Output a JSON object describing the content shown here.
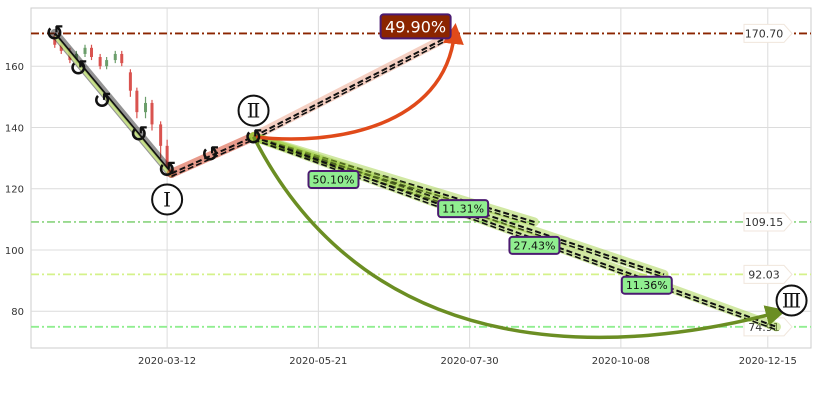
{
  "chart_data": {
    "type": "line",
    "x_axis": {
      "type": "date",
      "range": [
        "2020-01-09",
        "2021-01-04"
      ],
      "tick_labels": [
        "2020-03-12",
        "2020-05-21",
        "2020-07-30",
        "2020-10-08",
        "2020-12-15"
      ],
      "tick_dates": [
        "2020-03-12",
        "2020-05-21",
        "2020-07-30",
        "2020-10-08",
        "2020-12-15"
      ]
    },
    "y_axis": {
      "range": [
        68,
        179
      ],
      "tick_labels": [
        "80",
        "100",
        "120",
        "140",
        "160"
      ],
      "tick_values": [
        80,
        100,
        120,
        140,
        160
      ]
    },
    "grid": true,
    "price_bars": [
      {
        "x": "2020-01-20",
        "open": 170,
        "close": 167,
        "high": 171,
        "low": 166
      },
      {
        "x": "2020-01-23",
        "open": 167,
        "close": 165,
        "high": 168,
        "low": 164
      },
      {
        "x": "2020-01-27",
        "open": 165,
        "close": 162,
        "high": 166,
        "low": 161
      },
      {
        "x": "2020-01-30",
        "open": 162,
        "close": 164,
        "high": 165,
        "low": 161
      },
      {
        "x": "2020-02-03",
        "open": 164,
        "close": 166,
        "high": 167,
        "low": 163
      },
      {
        "x": "2020-02-06",
        "open": 166,
        "close": 163,
        "high": 167,
        "low": 162
      },
      {
        "x": "2020-02-10",
        "open": 163,
        "close": 160,
        "high": 164,
        "low": 159
      },
      {
        "x": "2020-02-13",
        "open": 160,
        "close": 162,
        "high": 163,
        "low": 159
      },
      {
        "x": "2020-02-17",
        "open": 162,
        "close": 164,
        "high": 165,
        "low": 161
      },
      {
        "x": "2020-02-20",
        "open": 164,
        "close": 161,
        "high": 165,
        "low": 160
      },
      {
        "x": "2020-02-24",
        "open": 158,
        "close": 152,
        "high": 159,
        "low": 150
      },
      {
        "x": "2020-02-27",
        "open": 152,
        "close": 145,
        "high": 153,
        "low": 143
      },
      {
        "x": "2020-03-02",
        "open": 145,
        "close": 148,
        "high": 150,
        "low": 143
      },
      {
        "x": "2020-03-05",
        "open": 148,
        "close": 141,
        "high": 149,
        "low": 139
      },
      {
        "x": "2020-03-09",
        "open": 141,
        "close": 134,
        "high": 142,
        "low": 130
      },
      {
        "x": "2020-03-12",
        "open": 134,
        "close": 127,
        "high": 136,
        "low": 124
      }
    ],
    "trend_segments": [
      {
        "name": "down",
        "from": {
          "x": "2020-01-20",
          "y": 170.7
        },
        "to": {
          "x": "2020-03-14",
          "y": 125
        },
        "color": "#111111"
      },
      {
        "name": "up-1",
        "from": {
          "x": "2020-03-14",
          "y": 125
        },
        "to": {
          "x": "2020-04-21",
          "y": 137
        },
        "color": "#cc2200"
      },
      {
        "name": "up-2",
        "from": {
          "x": "2020-04-21",
          "y": 137
        },
        "to": {
          "x": "2020-07-23",
          "y": 170.7
        },
        "color": "#e9967a"
      },
      {
        "name": "down-1",
        "from": {
          "x": "2020-04-21",
          "y": 137
        },
        "to": {
          "x": "2020-08-29",
          "y": 109.15
        },
        "color": "#9acd32"
      },
      {
        "name": "down-2",
        "from": {
          "x": "2020-04-21",
          "y": 137
        },
        "to": {
          "x": "2020-10-28",
          "y": 92.03
        },
        "color": "#9acd32"
      },
      {
        "name": "down-3",
        "from": {
          "x": "2020-04-21",
          "y": 137
        },
        "to": {
          "x": "2020-12-19",
          "y": 74.91
        },
        "color": "#9acd32"
      }
    ],
    "horizontal_levels": [
      {
        "value": 170.7,
        "label": "170.70",
        "color": "#8b2500"
      },
      {
        "value": 109.15,
        "label": "109.15",
        "color": "#98d98e"
      },
      {
        "value": 92.03,
        "label": "92.03",
        "color": "#d4f28a"
      },
      {
        "value": 74.91,
        "label": "74.91",
        "color": "#90ee90"
      }
    ],
    "percent_labels": [
      {
        "text": "49.90%",
        "x": "2020-07-05",
        "y": 173,
        "bg": "#8b2500",
        "fg": "#ffffff",
        "size": "big"
      },
      {
        "text": "50.10%",
        "x": "2020-05-28",
        "y": 123,
        "bg": "#90ee90",
        "fg": "#111111",
        "size": "small"
      },
      {
        "text": "11.31%",
        "x": "2020-07-27",
        "y": 113.5,
        "bg": "#90ee90",
        "fg": "#111111",
        "size": "small"
      },
      {
        "text": "27.43%",
        "x": "2020-08-29",
        "y": 101.5,
        "bg": "#90ee90",
        "fg": "#111111",
        "size": "small"
      },
      {
        "text": "11.36%",
        "x": "2020-10-20",
        "y": 88.5,
        "bg": "#90ee90",
        "fg": "#111111",
        "size": "small"
      }
    ],
    "wave_labels": [
      {
        "text": "↺",
        "x": "2020-01-20",
        "y": 171
      },
      {
        "text": "↺",
        "x": "2020-01-31",
        "y": 159.5
      },
      {
        "text": "↺",
        "x": "2020-02-11",
        "y": 149
      },
      {
        "text": "↺",
        "x": "2020-02-28",
        "y": 138
      },
      {
        "text": "↺",
        "x": "2020-03-12",
        "y": 126.5
      },
      {
        "text": "↺",
        "x": "2020-04-01",
        "y": 131.5
      },
      {
        "text": "↺",
        "x": "2020-04-21",
        "y": 137
      }
    ],
    "roman_labels": [
      {
        "text": "Ⅰ",
        "x": "2020-03-12",
        "y": 116.5
      },
      {
        "text": "Ⅱ",
        "x": "2020-04-21",
        "y": 145.5
      },
      {
        "text": "Ⅲ",
        "x": "2020-12-26",
        "y": 83.5
      }
    ],
    "curved_arrows": [
      {
        "from": {
          "x": "2020-04-21",
          "y": 137
        },
        "to": {
          "x": "2020-07-23",
          "y": 170.7
        },
        "color": "#e04a1a"
      },
      {
        "from": {
          "x": "2020-04-21",
          "y": 137
        },
        "to": {
          "x": "2020-12-19",
          "y": 79.5
        },
        "color": "#6b8e23"
      }
    ]
  }
}
